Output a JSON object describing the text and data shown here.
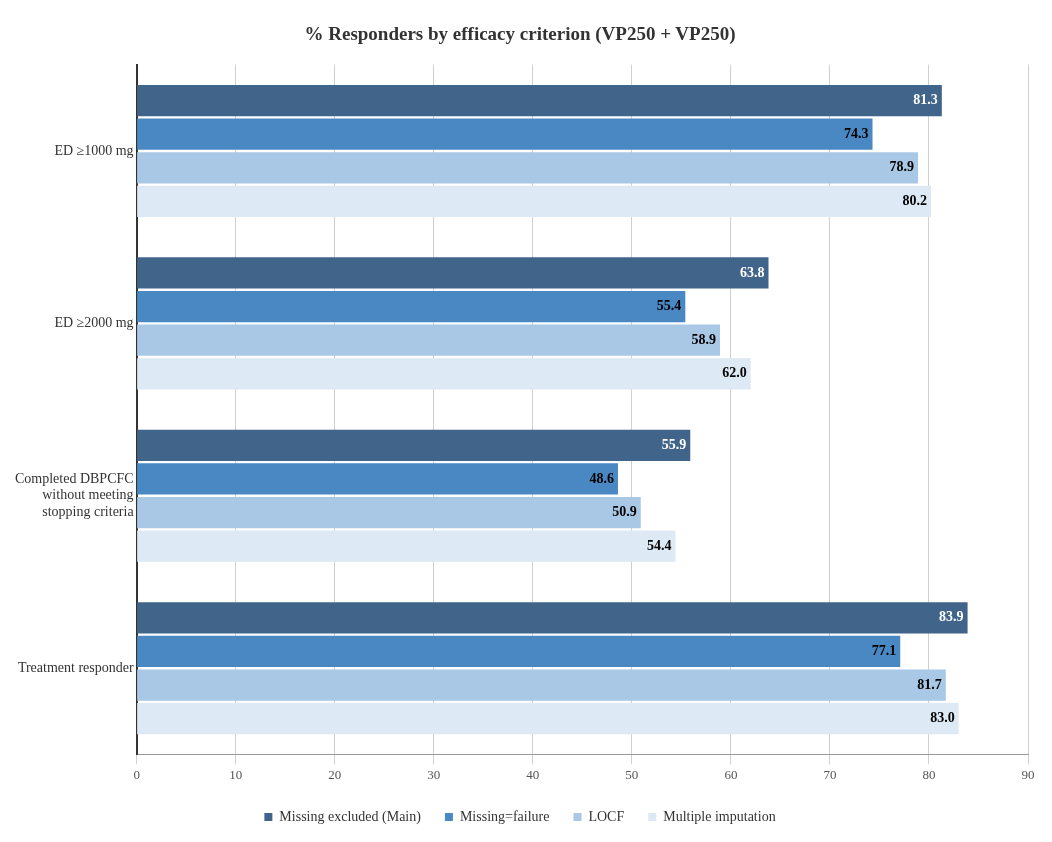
{
  "chart_data": {
    "type": "bar",
    "orientation": "horizontal",
    "title": "% Responders by efficacy criterion (VP250 + VP250)",
    "categories": [
      "ED ≥1000 mg",
      "ED ≥2000 mg",
      "Completed DBPCFC without meeting stopping criteria",
      "Treatment responder"
    ],
    "series": [
      {
        "name": "Missing excluded (Main)",
        "color": "#41648a",
        "values": [
          81.3,
          63.8,
          55.9,
          83.9
        ],
        "value_labels": [
          "81.3",
          "63.8",
          "55.9",
          "83.9"
        ]
      },
      {
        "name": "Missing=failure",
        "color": "#4a88c4",
        "values": [
          74.3,
          55.4,
          48.6,
          77.1
        ],
        "value_labels": [
          "74.3",
          "55.4",
          "48.6",
          "77.1"
        ]
      },
      {
        "name": "LOCF",
        "color": "#a9c8e6",
        "values": [
          78.9,
          58.9,
          50.9,
          81.7
        ],
        "value_labels": [
          "78.9",
          "58.9",
          "50.9",
          "81.7"
        ]
      },
      {
        "name": "Multiple imputation",
        "color": "#dde9f5",
        "values": [
          80.2,
          62.0,
          54.4,
          83.0
        ],
        "value_labels": [
          "80.2",
          "62.0",
          "54.4",
          "83.0"
        ]
      }
    ],
    "xlim": [
      0,
      90
    ],
    "xticks": [
      0,
      10,
      20,
      30,
      40,
      50,
      60,
      70,
      80,
      90
    ],
    "grid": "x",
    "legend": "bottom"
  }
}
